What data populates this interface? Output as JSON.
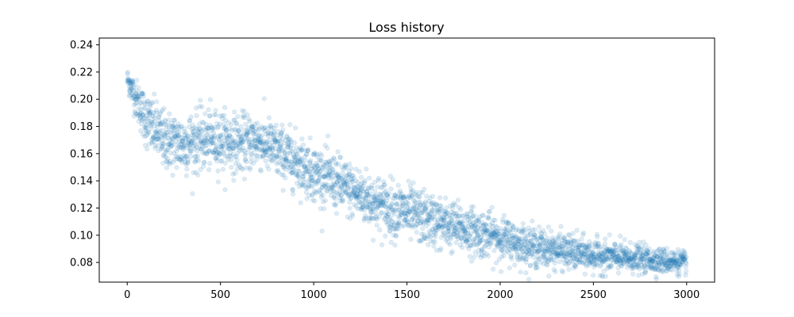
{
  "chart_data": {
    "type": "scatter",
    "title": "Loss history",
    "xlabel": "",
    "ylabel": "",
    "xlim": [
      -150,
      3150
    ],
    "ylim": [
      0.0655,
      0.245
    ],
    "x_ticks": [
      0,
      500,
      1000,
      1500,
      2000,
      2500,
      3000
    ],
    "y_ticks": [
      0.08,
      0.1,
      0.12,
      0.14,
      0.16,
      0.18,
      0.2,
      0.22,
      0.24
    ],
    "x_tick_labels": [
      "0",
      "500",
      "1000",
      "1500",
      "2000",
      "2500",
      "3000"
    ],
    "y_tick_labels": [
      "0.08",
      "0.10",
      "0.12",
      "0.14",
      "0.16",
      "0.18",
      "0.20",
      "0.22",
      "0.24"
    ],
    "grid": false,
    "marker_color": "#1f77b4",
    "marker_opacity": 0.15,
    "point_count": 3000,
    "trend": [
      {
        "x": 0,
        "y": 0.215
      },
      {
        "x": 50,
        "y": 0.2
      },
      {
        "x": 100,
        "y": 0.185
      },
      {
        "x": 200,
        "y": 0.17
      },
      {
        "x": 300,
        "y": 0.167
      },
      {
        "x": 400,
        "y": 0.17
      },
      {
        "x": 500,
        "y": 0.17
      },
      {
        "x": 600,
        "y": 0.167
      },
      {
        "x": 700,
        "y": 0.17
      },
      {
        "x": 800,
        "y": 0.162
      },
      {
        "x": 900,
        "y": 0.155
      },
      {
        "x": 1000,
        "y": 0.146
      },
      {
        "x": 1100,
        "y": 0.14
      },
      {
        "x": 1200,
        "y": 0.133
      },
      {
        "x": 1300,
        "y": 0.126
      },
      {
        "x": 1400,
        "y": 0.12
      },
      {
        "x": 1500,
        "y": 0.117
      },
      {
        "x": 1600,
        "y": 0.112
      },
      {
        "x": 1700,
        "y": 0.108
      },
      {
        "x": 1800,
        "y": 0.105
      },
      {
        "x": 1900,
        "y": 0.101
      },
      {
        "x": 2000,
        "y": 0.098
      },
      {
        "x": 2100,
        "y": 0.094
      },
      {
        "x": 2200,
        "y": 0.091
      },
      {
        "x": 2300,
        "y": 0.089
      },
      {
        "x": 2400,
        "y": 0.087
      },
      {
        "x": 2500,
        "y": 0.085
      },
      {
        "x": 2600,
        "y": 0.084
      },
      {
        "x": 2700,
        "y": 0.083
      },
      {
        "x": 2800,
        "y": 0.082
      },
      {
        "x": 2900,
        "y": 0.081
      },
      {
        "x": 3000,
        "y": 0.08
      }
    ],
    "spread": [
      {
        "x": 0,
        "s": 0.004
      },
      {
        "x": 100,
        "s": 0.01
      },
      {
        "x": 300,
        "s": 0.011
      },
      {
        "x": 800,
        "s": 0.01
      },
      {
        "x": 1500,
        "s": 0.01
      },
      {
        "x": 2200,
        "s": 0.007
      },
      {
        "x": 3000,
        "s": 0.004
      }
    ]
  }
}
